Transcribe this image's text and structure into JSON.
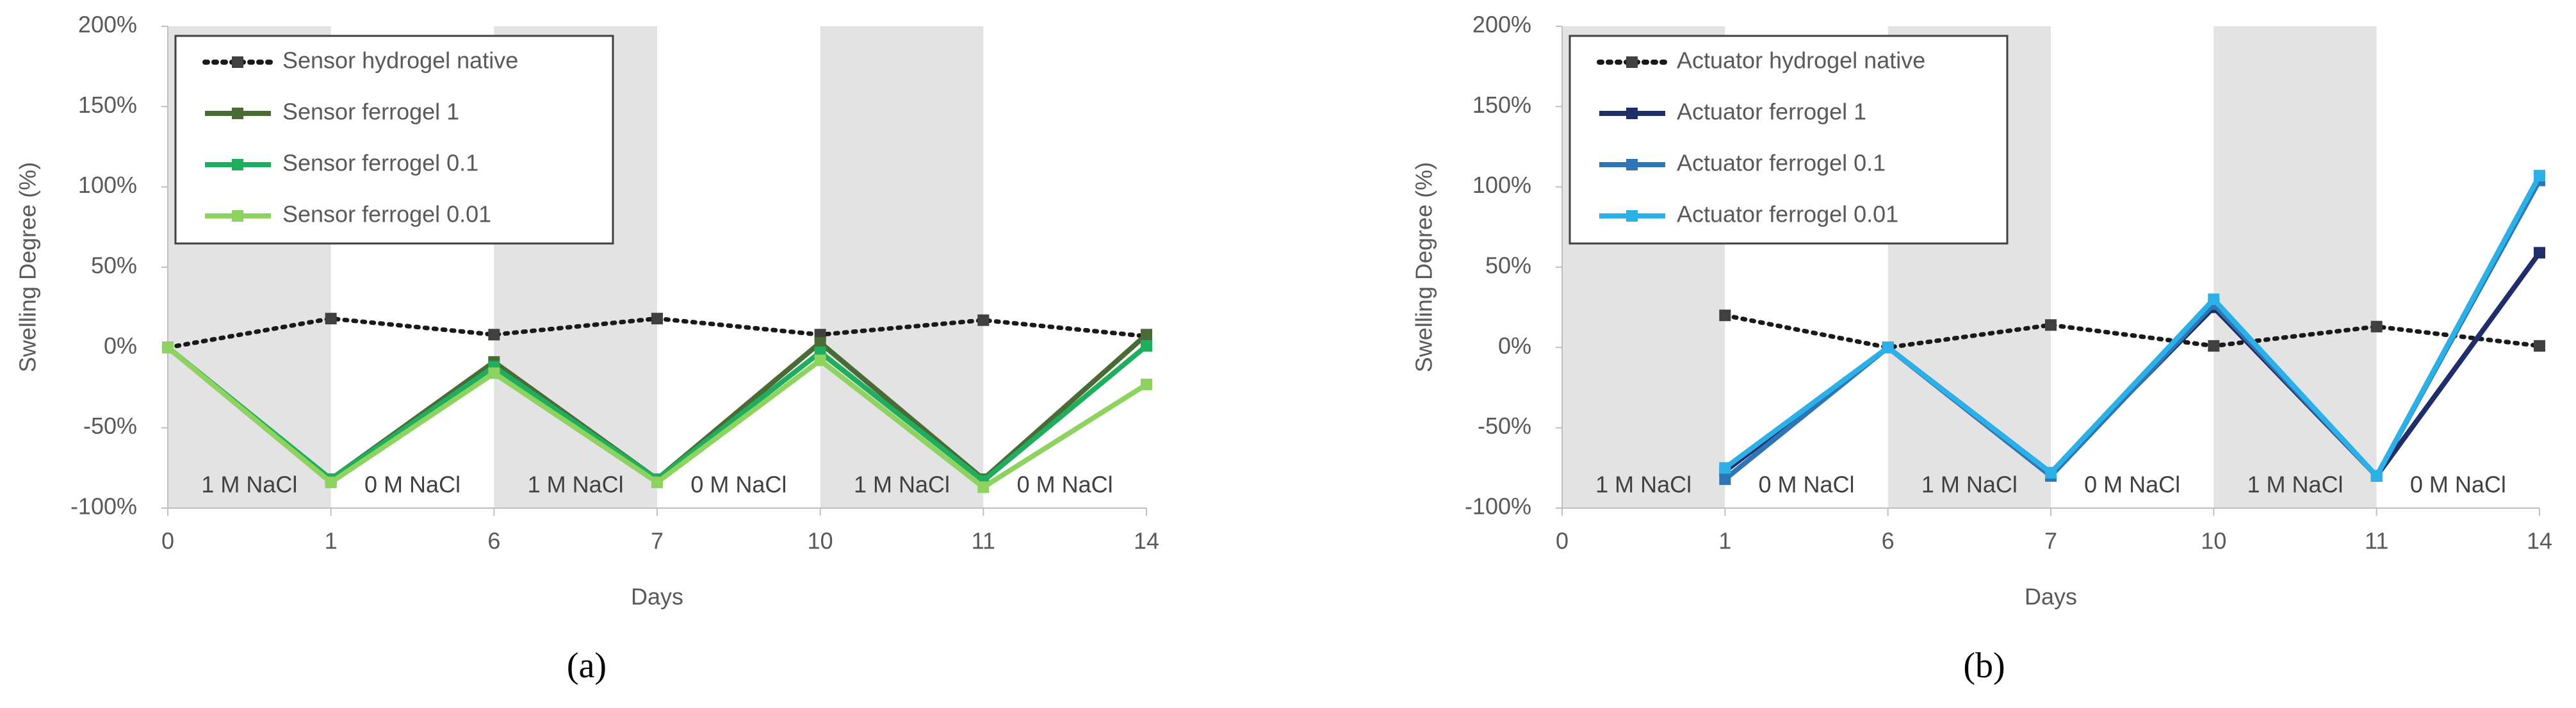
{
  "chart_data": [
    {
      "type": "line",
      "caption": "(a)",
      "y_label": "Swelling Degree   (%)",
      "x_label": "Days",
      "categories": [
        "0",
        "1",
        "6",
        "7",
        "10",
        "11",
        "14"
      ],
      "annotations": [
        "1 M NaCl",
        "0 M NaCl",
        "1 M NaCl",
        "0 M NaCl",
        "1 M NaCl",
        "0 M NaCl"
      ],
      "ylim": [
        -100,
        200
      ],
      "yticks": [
        {
          "value": -100,
          "label": "-100%"
        },
        {
          "value": -50,
          "label": "-50%"
        },
        {
          "value": 0,
          "label": "0%"
        },
        {
          "value": 50,
          "label": "50%"
        },
        {
          "value": 100,
          "label": "100%"
        },
        {
          "value": 150,
          "label": "150%"
        },
        {
          "value": 200,
          "label": "200%"
        }
      ],
      "grid": false,
      "legend": "upper-left",
      "series": [
        {
          "name": "Sensor hydrogel native",
          "color": "#1a1a1a",
          "style": "dotted",
          "values": [
            0,
            18,
            8,
            18,
            8,
            17,
            7
          ]
        },
        {
          "name": "Sensor ferrogel 1",
          "color": "#4a6b35",
          "style": "solid",
          "values": [
            0,
            -82,
            -9,
            -82,
            3,
            -82,
            8
          ]
        },
        {
          "name": "Sensor ferrogel 0.1",
          "color": "#1fae5e",
          "style": "solid",
          "values": [
            0,
            -82,
            -12,
            -82,
            -3,
            -83,
            1
          ]
        },
        {
          "name": "Sensor ferrogel 0.01",
          "color": "#8ed35f",
          "style": "solid",
          "values": [
            0,
            -84,
            -16,
            -84,
            -8,
            -87,
            -23
          ]
        }
      ]
    },
    {
      "type": "line",
      "caption": "(b)",
      "y_label": "Swelling Degree   (%)",
      "x_label": "Days",
      "categories": [
        "0",
        "1",
        "6",
        "7",
        "10",
        "11",
        "14"
      ],
      "annotations": [
        "1 M NaCl",
        "0 M NaCl",
        "1 M NaCl",
        "0 M NaCl",
        "1 M NaCl",
        "0 M NaCl"
      ],
      "ylim": [
        -100,
        200
      ],
      "yticks": [
        {
          "value": -100,
          "label": "-100%"
        },
        {
          "value": -50,
          "label": "-50%"
        },
        {
          "value": 0,
          "label": "0%"
        },
        {
          "value": 50,
          "label": "50%"
        },
        {
          "value": 100,
          "label": "100%"
        },
        {
          "value": 150,
          "label": "150%"
        },
        {
          "value": 200,
          "label": "200%"
        }
      ],
      "grid": false,
      "legend": "upper-left",
      "series": [
        {
          "name": "Actuator hydrogel native",
          "color": "#1a1a1a",
          "style": "dotted",
          "values": [
            null,
            20,
            0,
            14,
            1,
            13,
            1
          ]
        },
        {
          "name": "Actuator ferrogel 1",
          "color": "#1f2d6b",
          "style": "solid",
          "values": [
            null,
            -77,
            0,
            -78,
            25,
            -80,
            59
          ]
        },
        {
          "name": "Actuator ferrogel 0.1",
          "color": "#2e75b6",
          "style": "solid",
          "values": [
            null,
            -82,
            0,
            -80,
            27,
            -80,
            104
          ]
        },
        {
          "name": "Actuator ferrogel 0.01",
          "color": "#2bb0e8",
          "style": "solid",
          "values": [
            null,
            -75,
            0,
            -78,
            30,
            -80,
            107
          ]
        }
      ]
    }
  ]
}
